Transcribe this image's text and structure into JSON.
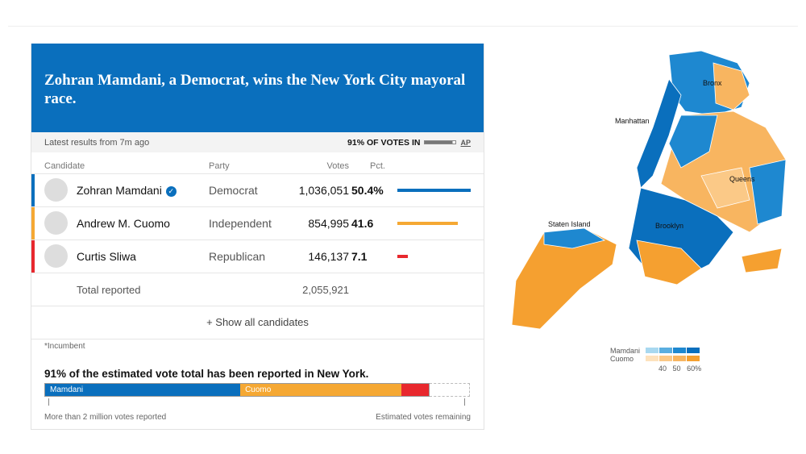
{
  "headline": "Zohran Mamdani, a Democrat, wins the New York City mayoral race.",
  "latest": "Latest results from 7m ago",
  "votes_in": "91% OF VOTES IN",
  "votes_in_pct": 91,
  "ap": "AP",
  "columns": {
    "candidate": "Candidate",
    "party": "Party",
    "votes": "Votes",
    "pct": "Pct."
  },
  "candidates": [
    {
      "name": "Zohran Mamdani",
      "party": "Democrat",
      "votes": "1,036,051",
      "pct": "50.4%",
      "pct_value": 50.4,
      "color": "#0a6fbd",
      "winner": true
    },
    {
      "name": "Andrew M. Cuomo",
      "party": "Independent",
      "votes": "854,995",
      "pct": "41.6",
      "pct_value": 41.6,
      "color": "#f5a833",
      "winner": false
    },
    {
      "name": "Curtis Sliwa",
      "party": "Republican",
      "votes": "146,137",
      "pct": "7.1",
      "pct_value": 7.1,
      "color": "#e8282e",
      "winner": false
    }
  ],
  "total": {
    "label": "Total reported",
    "votes": "2,055,921"
  },
  "show_all": "+ Show all candidates",
  "incumbent_note": "*Incumbent",
  "estimate": {
    "heading": "91% of the estimated vote total has been reported in New York.",
    "reported_label": "More than 2 million votes reported",
    "remaining_label": "Estimated votes remaining",
    "bar_labels": [
      "Mamdani",
      "Cuomo"
    ]
  },
  "map": {
    "labels": [
      "Bronx",
      "Manhattan",
      "Queens",
      "Staten Island",
      "Brooklyn"
    ],
    "legend": {
      "rows": [
        "Mamdani",
        "Cuomo"
      ],
      "ticks": [
        "40",
        "50",
        "60%"
      ],
      "mamdani_colors": [
        "#a8d8f0",
        "#5aaee0",
        "#1e88d0",
        "#0a6fbd"
      ],
      "cuomo_colors": [
        "#fde2bd",
        "#fbc987",
        "#f8b560",
        "#f5a030"
      ]
    }
  }
}
